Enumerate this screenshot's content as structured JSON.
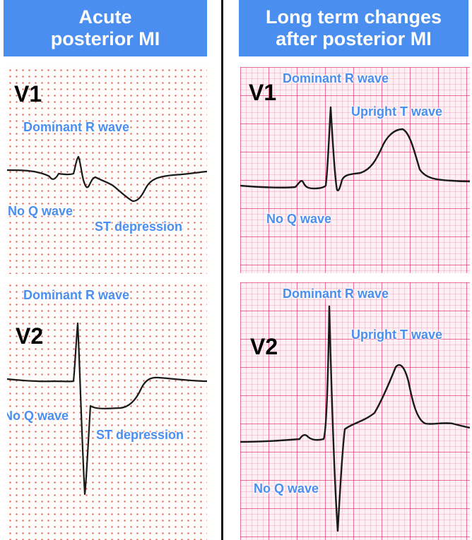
{
  "columns": {
    "acute": {
      "title_line1": "Acute",
      "title_line2": "posterior MI"
    },
    "long_term": {
      "title_line1": "Long term changes",
      "title_line2": "after posterior MI"
    }
  },
  "leads": {
    "v1": "V1",
    "v2": "V2"
  },
  "annotations": {
    "dominant_r_wave": "Dominant R wave",
    "no_q_wave": "No Q wave",
    "st_depression": "ST depression",
    "upright_t_wave": "Upright T wave"
  },
  "colors": {
    "header_bg": "#4a8ff0",
    "annotation_text": "#4a8ff0",
    "trace": "#1a1a1a",
    "acute_grid_dots": "#e35a4a",
    "long_term_grid": "#dc285a"
  }
}
